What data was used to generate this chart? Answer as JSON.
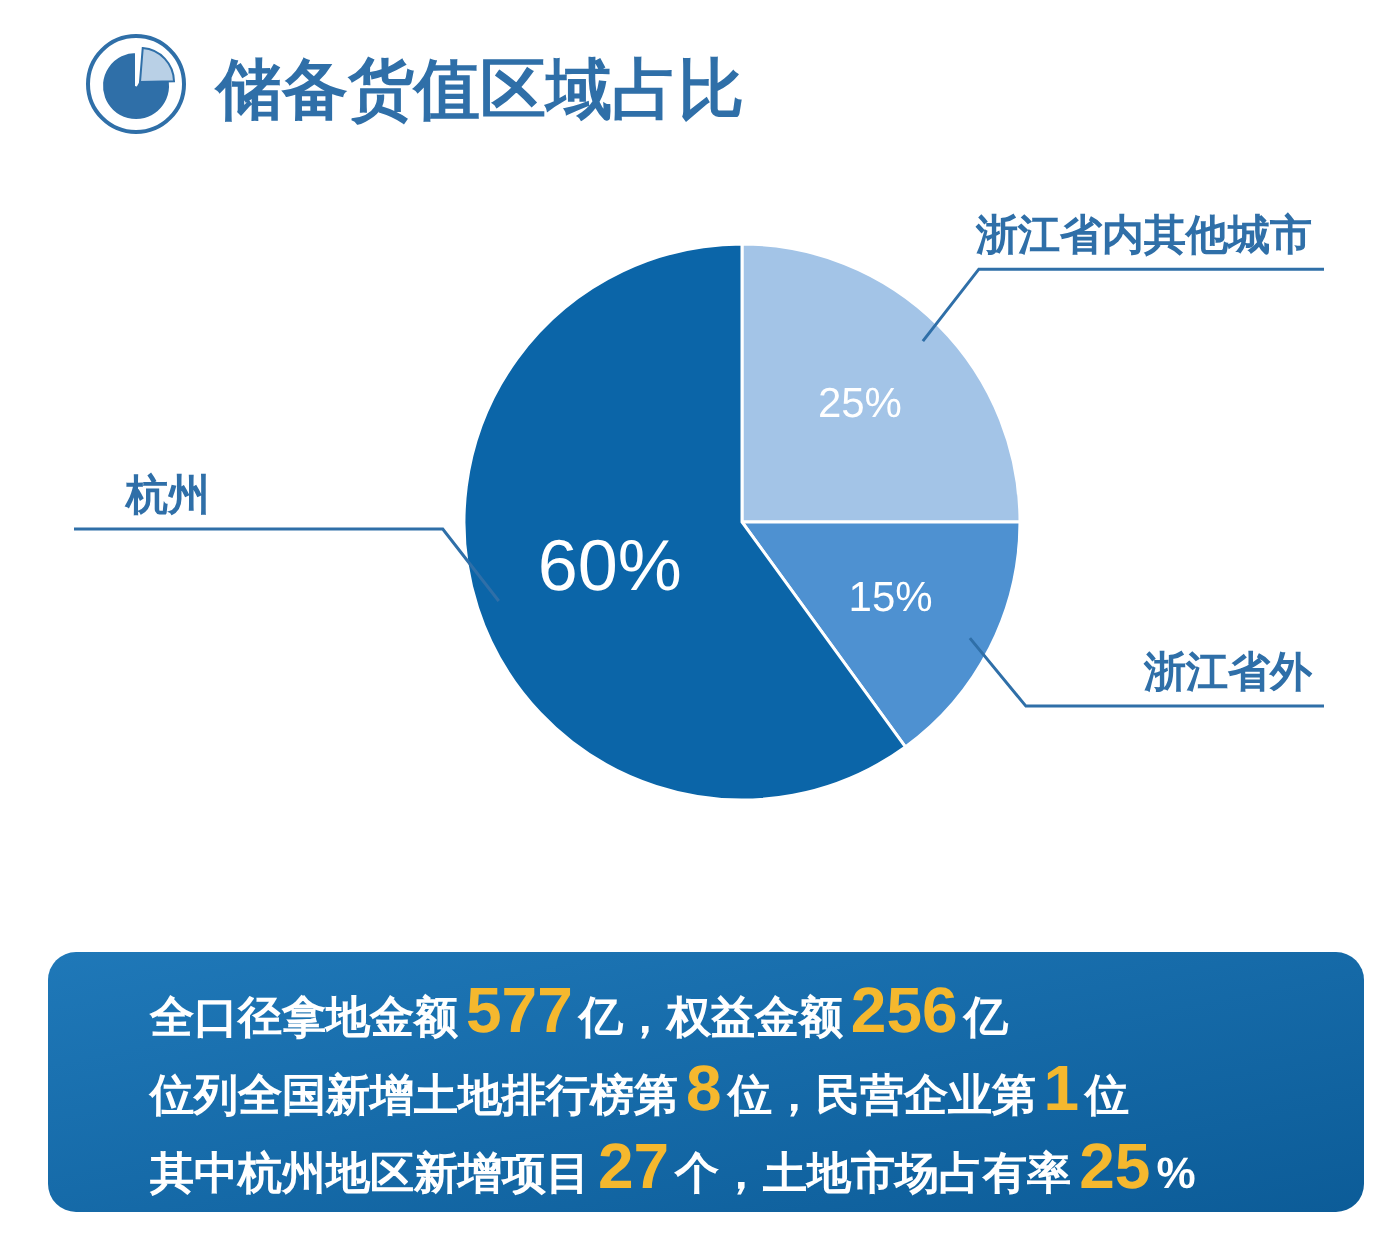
{
  "chart_data": {
    "type": "pie",
    "title": "储备货值区域占比",
    "categories": [
      "浙江省内其他城市",
      "浙江省外",
      "杭州"
    ],
    "values": [
      25,
      15,
      60
    ],
    "colors": [
      "#a3c4e7",
      "#4e91d1",
      "#0b65a8"
    ],
    "value_labels": [
      "25%",
      "15%",
      "60%"
    ],
    "annotations": [
      "全口径拿地金额577亿，权益金额256亿",
      "位列全国新增土地排行榜第8位，民营企业第1位",
      "其中杭州地区新增项目27个，土地市场占有率25%"
    ]
  }
}
